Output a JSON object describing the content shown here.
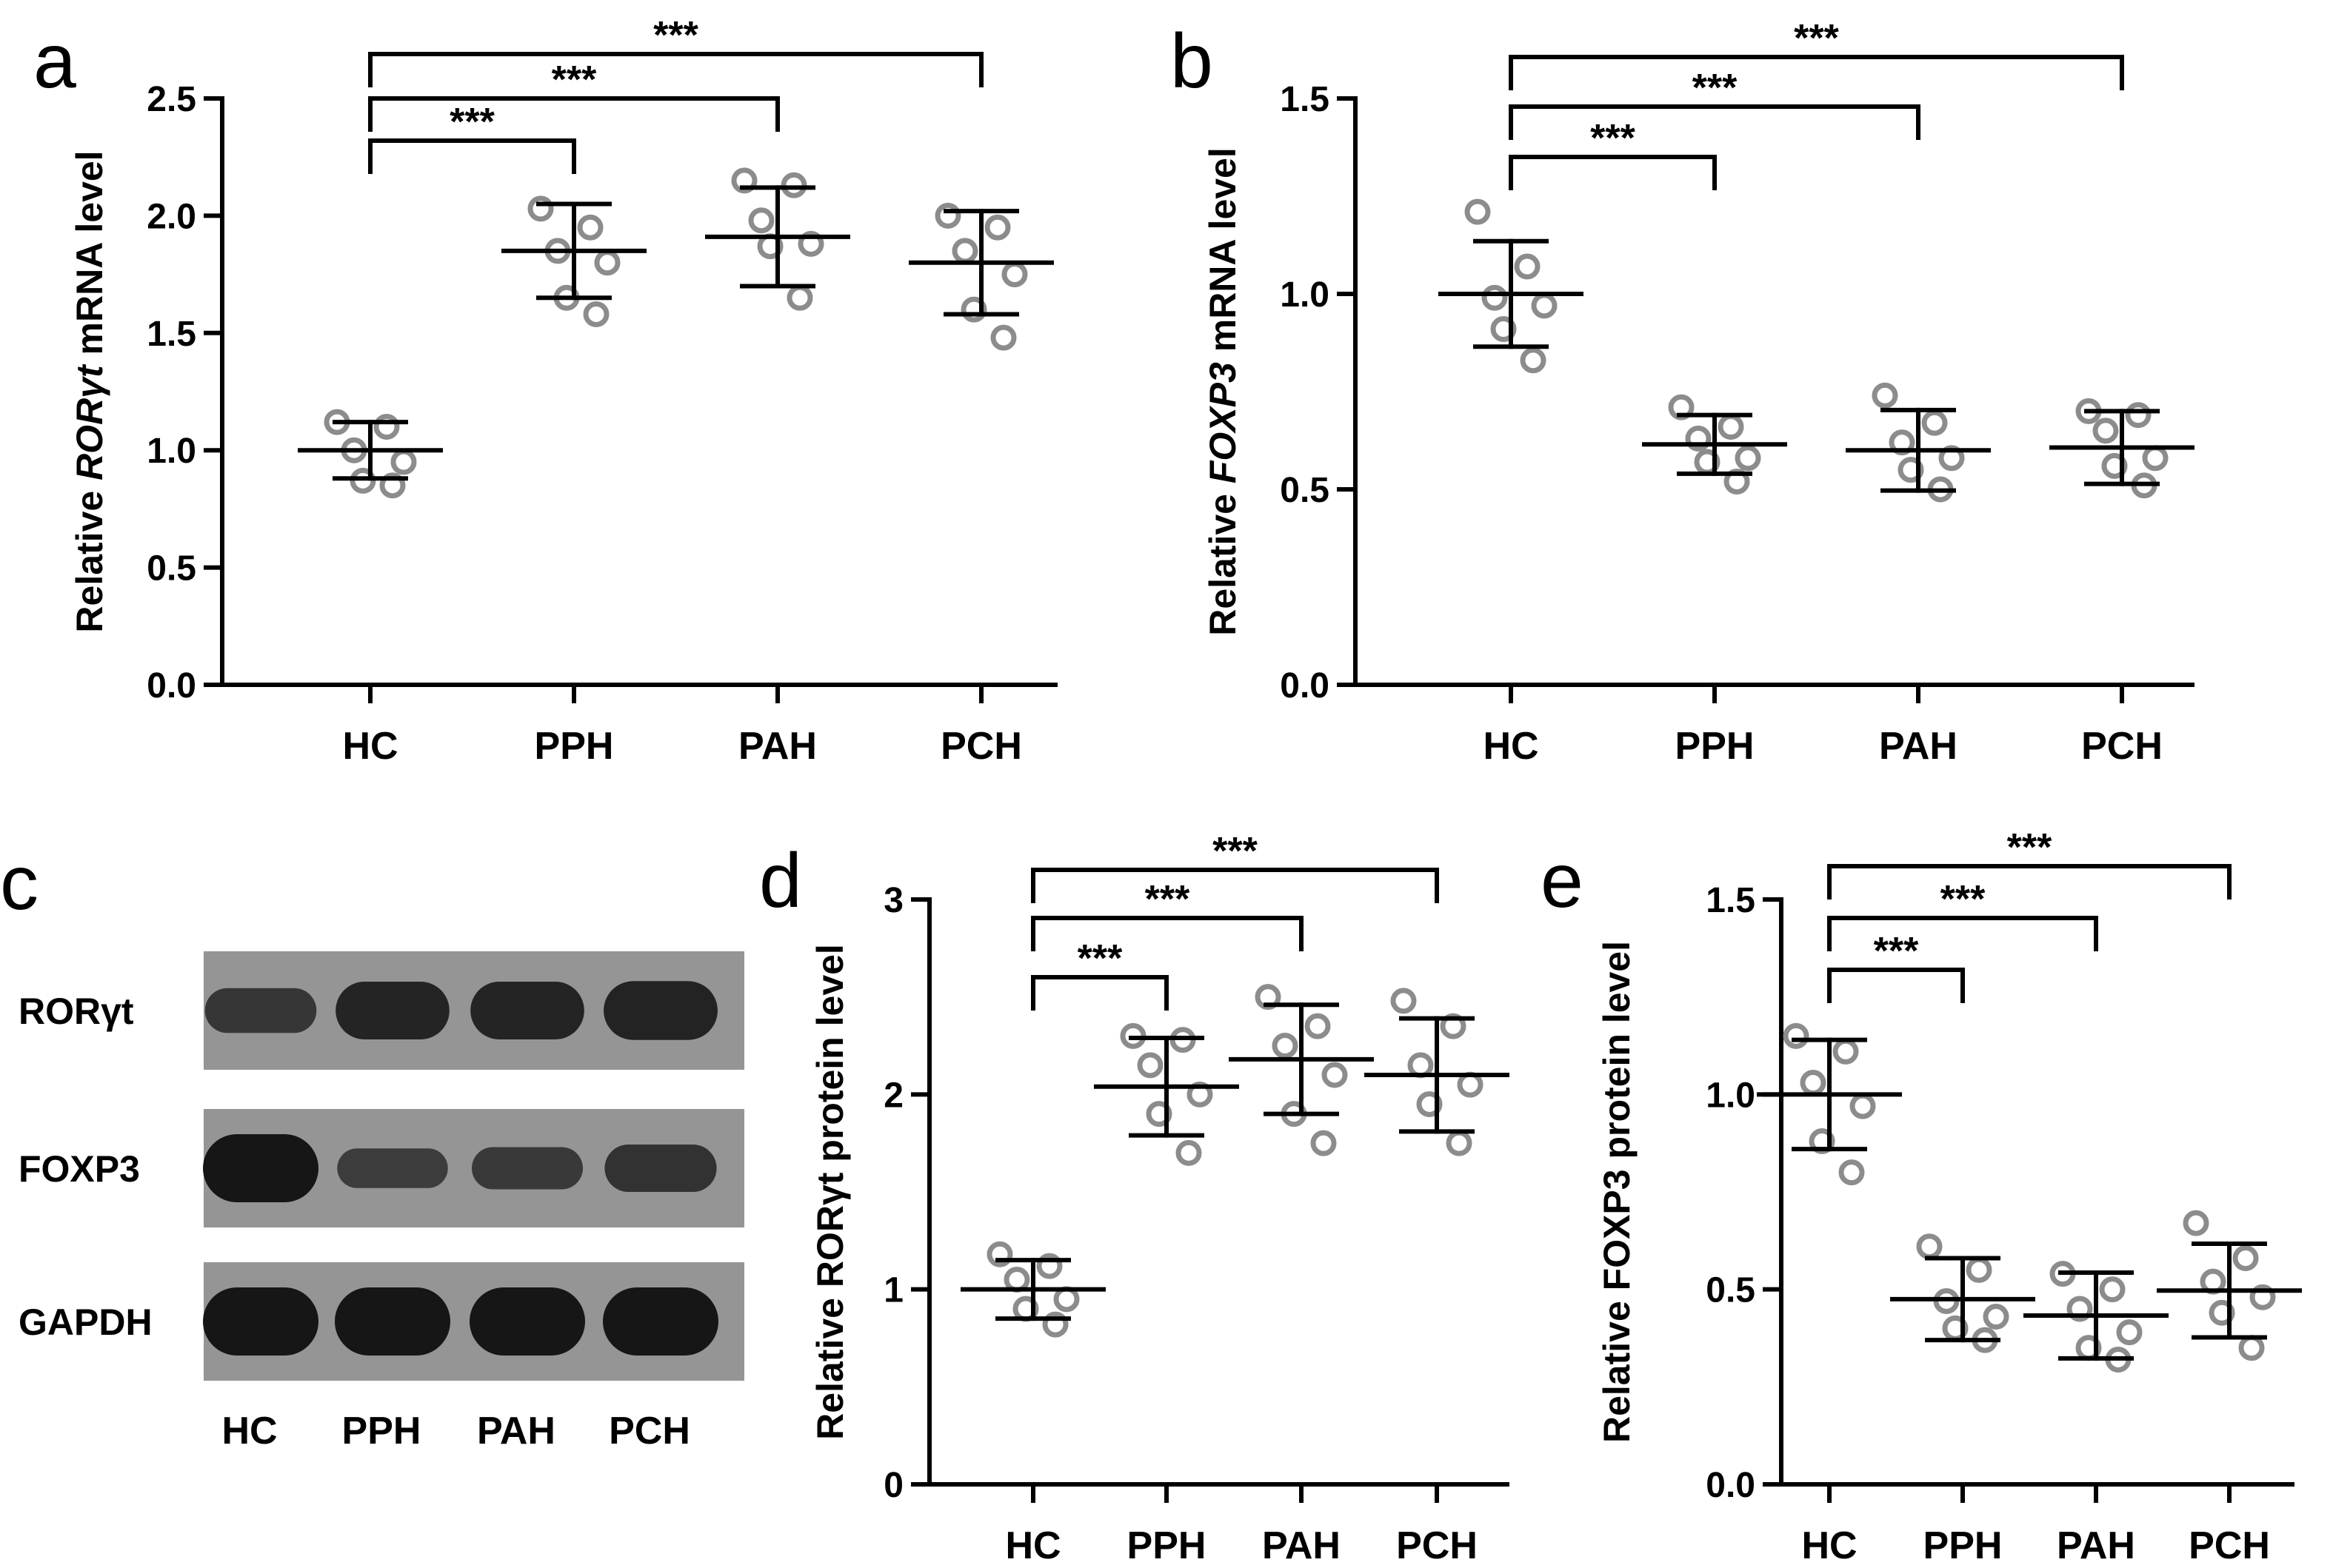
{
  "colors": {
    "marker": "#8c8c8c",
    "line": "#000000",
    "blot_bg": "#959595",
    "band": "#161616"
  },
  "chart_data": [
    {
      "panel": "a",
      "type": "scatter",
      "ylabel_prefix": "Relative ",
      "ylabel_italic": "RORγt",
      "ylabel_suffix": " mRNA level",
      "ylim": [
        0,
        2.5
      ],
      "yticks": [
        "0.0",
        "0.5",
        "1.0",
        "1.5",
        "2.0",
        "2.5"
      ],
      "categories": [
        "HC",
        "PPH",
        "PAH",
        "PCH"
      ],
      "points": [
        [
          1.12,
          1.1,
          1.0,
          0.95,
          0.87,
          0.85
        ],
        [
          2.03,
          1.95,
          1.85,
          1.8,
          1.65,
          1.58
        ],
        [
          2.15,
          2.13,
          1.98,
          1.88,
          1.87,
          1.65
        ],
        [
          2.0,
          1.95,
          1.85,
          1.75,
          1.6,
          1.48
        ]
      ],
      "mean": [
        1.0,
        1.85,
        1.91,
        1.8
      ],
      "sd": [
        0.12,
        0.2,
        0.21,
        0.22
      ],
      "comparisons": [
        {
          "from": "HC",
          "to": "PPH",
          "label": "***"
        },
        {
          "from": "HC",
          "to": "PAH",
          "label": "***"
        },
        {
          "from": "HC",
          "to": "PCH",
          "label": "***"
        }
      ]
    },
    {
      "panel": "b",
      "type": "scatter",
      "ylabel_prefix": "Relative ",
      "ylabel_italic": "FOXP3",
      "ylabel_suffix": " mRNA level",
      "ylim": [
        0,
        1.5
      ],
      "yticks": [
        "0.0",
        "0.5",
        "1.0",
        "1.5"
      ],
      "categories": [
        "HC",
        "PPH",
        "PAH",
        "PCH"
      ],
      "points": [
        [
          1.21,
          1.07,
          0.99,
          0.97,
          0.91,
          0.83
        ],
        [
          0.71,
          0.66,
          0.63,
          0.58,
          0.57,
          0.52
        ],
        [
          0.74,
          0.67,
          0.62,
          0.58,
          0.55,
          0.5
        ],
        [
          0.7,
          0.69,
          0.65,
          0.58,
          0.56,
          0.51
        ]
      ],
      "mean": [
        1.0,
        0.615,
        0.6,
        0.607
      ],
      "sd": [
        0.135,
        0.075,
        0.103,
        0.093
      ],
      "comparisons": [
        {
          "from": "HC",
          "to": "PPH",
          "label": "***"
        },
        {
          "from": "HC",
          "to": "PAH",
          "label": "***"
        },
        {
          "from": "HC",
          "to": "PCH",
          "label": "***"
        }
      ]
    },
    {
      "panel": "d",
      "type": "scatter",
      "ylabel_prefix": "Relative RORγt protein level",
      "ylabel_italic": "",
      "ylabel_suffix": "",
      "ylim": [
        0,
        3
      ],
      "yticks": [
        "0",
        "1",
        "2",
        "3"
      ],
      "categories": [
        "HC",
        "PPH",
        "PAH",
        "PCH"
      ],
      "points": [
        [
          1.18,
          1.12,
          1.05,
          0.95,
          0.9,
          0.82
        ],
        [
          2.3,
          2.28,
          2.15,
          2.0,
          1.9,
          1.7
        ],
        [
          2.5,
          2.35,
          2.25,
          2.1,
          1.9,
          1.75
        ],
        [
          2.48,
          2.35,
          2.15,
          2.05,
          1.95,
          1.75
        ]
      ],
      "mean": [
        1.0,
        2.04,
        2.18,
        2.1
      ],
      "sd": [
        0.15,
        0.25,
        0.28,
        0.29
      ],
      "comparisons": [
        {
          "from": "HC",
          "to": "PPH",
          "label": "***"
        },
        {
          "from": "HC",
          "to": "PAH",
          "label": "***"
        },
        {
          "from": "HC",
          "to": "PCH",
          "label": "***"
        }
      ]
    },
    {
      "panel": "e",
      "type": "scatter",
      "ylabel_prefix": "Relative FOXP3 protein level",
      "ylabel_italic": "",
      "ylabel_suffix": "",
      "ylim": [
        0,
        1.5
      ],
      "yticks": [
        "0.0",
        "0.5",
        "1.0",
        "1.5"
      ],
      "categories": [
        "HC",
        "PPH",
        "PAH",
        "PCH"
      ],
      "points": [
        [
          1.15,
          1.11,
          1.03,
          0.97,
          0.88,
          0.8
        ],
        [
          0.61,
          0.55,
          0.47,
          0.43,
          0.4,
          0.37
        ],
        [
          0.54,
          0.5,
          0.45,
          0.39,
          0.35,
          0.32
        ],
        [
          0.67,
          0.58,
          0.52,
          0.48,
          0.44,
          0.35
        ]
      ],
      "mean": [
        1.0,
        0.475,
        0.433,
        0.497
      ],
      "sd": [
        0.14,
        0.105,
        0.11,
        0.12
      ],
      "comparisons": [
        {
          "from": "HC",
          "to": "PPH",
          "label": "***"
        },
        {
          "from": "HC",
          "to": "PAH",
          "label": "***"
        },
        {
          "from": "HC",
          "to": "PCH",
          "label": "***"
        }
      ]
    }
  ],
  "blot": {
    "panel": "c",
    "rows": [
      "RORγt",
      "FOXP3",
      "GAPDH"
    ],
    "lanes": [
      "HC",
      "PPH",
      "PAH",
      "PCH"
    ],
    "band_intensity": [
      [
        0.55,
        0.8,
        0.8,
        0.82
      ],
      [
        1.0,
        0.45,
        0.5,
        0.6
      ],
      [
        1.0,
        1.0,
        1.0,
        1.0
      ]
    ]
  }
}
